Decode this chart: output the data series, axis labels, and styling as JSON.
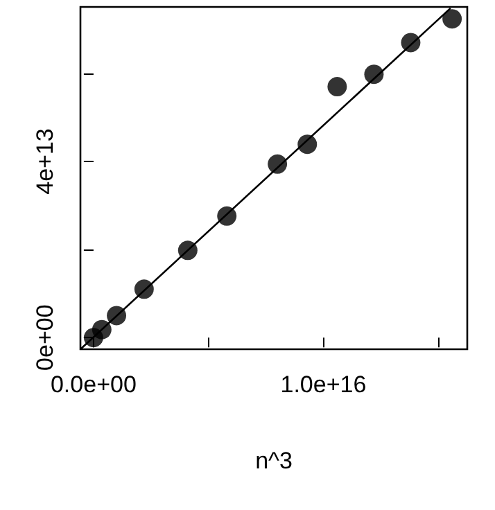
{
  "chart_data": {
    "type": "scatter",
    "xlabel": "n^3",
    "marker": "circle",
    "xlim": [
      -570000000000000.0,
      1.626e+16
    ],
    "ylim": [
      -2650000000000.0,
      75100000000000.0
    ],
    "xticks": [
      {
        "value": 0,
        "label": "0.0e+00"
      },
      {
        "value": 5000000000000000.0,
        "label": null
      },
      {
        "value": 1e+16,
        "label": "1.0e+16"
      },
      {
        "value": 1.5e+16,
        "label": null
      }
    ],
    "yticks": [
      {
        "value": 0,
        "label": "0e+00"
      },
      {
        "value": 20000000000000.0,
        "label": null
      },
      {
        "value": 40000000000000.0,
        "label": "4e+13"
      },
      {
        "value": 60000000000000.0,
        "label": null
      }
    ],
    "series": [
      {
        "color": "#000000",
        "x": [
          0,
          360000000000000.0,
          1000000000000000.0,
          2200000000000000.0,
          4100000000000000.0,
          5800000000000000.0,
          8000000000000000.0,
          9300000000000000.0,
          1.06e+16,
          1.22e+16,
          1.38e+16,
          1.56e+16
        ],
        "values": [
          0,
          1800000000000.0,
          5000000000000.0,
          11000000000000.0,
          19800000000000.0,
          27600000000000.0,
          39400000000000.0,
          43900000000000.0,
          57000000000000.0,
          59800000000000.0,
          67000000000000.0,
          72400000000000.0
        ]
      },
      {
        "type": "line",
        "color": "#000000",
        "marker": "none",
        "x": [
          -570000000000000.0,
          1.553e+16
        ],
        "values": [
          -2650000000000.0,
          74800000000000.0
        ]
      }
    ]
  }
}
